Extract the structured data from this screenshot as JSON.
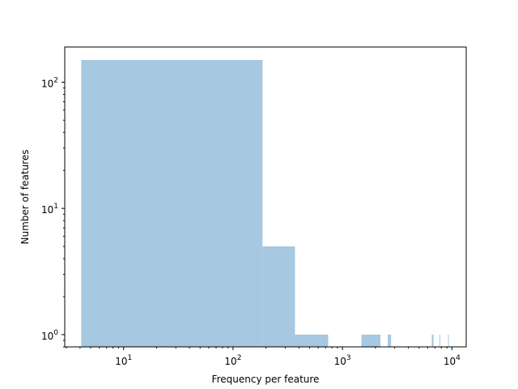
{
  "chart_data": {
    "type": "bar",
    "title": "",
    "xlabel": "Frequency per feature",
    "ylabel": "Number of features",
    "xscale": "log",
    "yscale": "log",
    "xlim": [
      2.9,
      13500
    ],
    "ylim": [
      0.8,
      190
    ],
    "grid": false,
    "color": "#a6c8e0",
    "x_ticks": [
      {
        "value": 10,
        "base": "10",
        "exp": "1"
      },
      {
        "value": 100,
        "base": "10",
        "exp": "2"
      },
      {
        "value": 1000,
        "base": "10",
        "exp": "3"
      },
      {
        "value": 10000,
        "base": "10",
        "exp": "4"
      }
    ],
    "y_ticks": [
      {
        "value": 1,
        "base": "10",
        "exp": "0"
      },
      {
        "value": 10,
        "base": "10",
        "exp": "1"
      },
      {
        "value": 100,
        "base": "10",
        "exp": "2"
      }
    ],
    "bins": [
      {
        "x0": 4.1,
        "x1": 186,
        "count": 150
      },
      {
        "x0": 186,
        "x1": 368,
        "count": 5
      },
      {
        "x0": 368,
        "x1": 740,
        "count": 1
      },
      {
        "x0": 1490,
        "x1": 2220,
        "count": 1
      },
      {
        "x0": 2590,
        "x1": 2780,
        "count": 1
      },
      {
        "x0": 6540,
        "x1": 6800,
        "count": 1
      },
      {
        "x0": 7700,
        "x1": 7780,
        "count": 1
      },
      {
        "x0": 9220,
        "x1": 9310,
        "count": 1
      }
    ]
  }
}
